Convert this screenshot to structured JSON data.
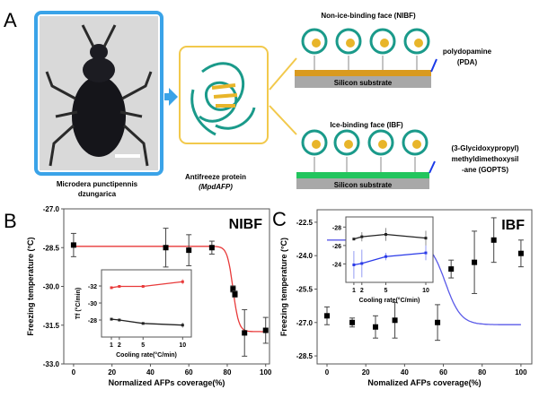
{
  "panel_a": {
    "letter": "A",
    "beetle_name_1": "Microdera punctipennis",
    "beetle_name_2": "dzungarica",
    "protein_label_1": "Antifreeze protein",
    "protein_label_2": "(MpdAFP)",
    "nibf_title": "Non-ice-binding face (NIBF)",
    "ibf_title": "Ice-binding face (IBF)",
    "substrate": "Silicon substrate",
    "pda_1": "polydopamine",
    "pda_2": "(PDA)",
    "gopts_1": "(3-Glycidoxypropyl)",
    "gopts_2": "methyldimethoxysil",
    "gopts_3": "-ane (GOPTS)",
    "colors": {
      "frame_blue": "#3aa3e8",
      "frame_yellow": "#f2c94c",
      "pda": "#d99a1f",
      "gopts": "#22c55e",
      "substrate": "#a8a8a8",
      "protein": "#1a9a8a"
    }
  },
  "chart_data": [
    {
      "id": "B",
      "letter": "B",
      "type": "scatter",
      "title": "NIBF",
      "xlabel": "Normalized AFPs coverage(%)",
      "ylabel": "Freezing temperature (°C)",
      "xlim": [
        -5.1,
        102
      ],
      "ylim": [
        -33,
        -27
      ],
      "xticks": [
        0,
        20,
        40,
        60,
        80,
        100
      ],
      "xtick_labels": [
        "0",
        "20",
        "40",
        "60",
        "80",
        "100"
      ],
      "yticks": [
        -27,
        -28.5,
        -30,
        -31.5,
        -33
      ],
      "ytick_labels": [
        "-27.0",
        "-28.5",
        "-30.0",
        "-31.5",
        "-33.0"
      ],
      "series": [
        {
          "name": "NIBF",
          "color": "#000000",
          "x": [
            0,
            48,
            60,
            72,
            83,
            84,
            89,
            100
          ],
          "y": [
            -28.4,
            -28.5,
            -28.6,
            -28.5,
            -30.1,
            -30.3,
            -31.8,
            -31.7
          ],
          "err": [
            0.45,
            0.75,
            0.6,
            0.25,
            0.12,
            0.12,
            0.9,
            0.5
          ]
        }
      ],
      "fit": {
        "color": "#e83a3a",
        "upper": -28.45,
        "lower": -31.75,
        "center": 83,
        "width": 1.5
      }
    },
    {
      "id": "B-inset",
      "type": "line",
      "xlabel": "Cooling rate(°C/min)",
      "ylabel": "Tf (°C/min)",
      "xlim": [
        -0.25,
        11.1
      ],
      "ylim": [
        -26.0,
        -33.9
      ],
      "xticks": [
        1,
        2,
        5,
        10
      ],
      "xtick_labels": [
        "1",
        "2",
        "5",
        "10"
      ],
      "yticks": [
        -32,
        -30,
        -28
      ],
      "ytick_labels": [
        "-32",
        "-30",
        "-28"
      ],
      "series": [
        {
          "name": "red",
          "color": "#e83a3a",
          "x": [
            1,
            2,
            5,
            10
          ],
          "y": [
            -31.8,
            -31.95,
            -31.95,
            -32.5
          ],
          "err": [
            0.1,
            0.1,
            0.1,
            0.3
          ]
        },
        {
          "name": "black",
          "color": "#222222",
          "x": [
            1,
            2,
            5,
            10
          ],
          "y": [
            -28.1,
            -28.0,
            -27.6,
            -27.4
          ],
          "err": [
            0.1,
            0.1,
            0.1,
            0.3
          ]
        }
      ]
    },
    {
      "id": "C",
      "letter": "C",
      "type": "scatter",
      "title": "IBF",
      "xlabel": "Nomalized AFPs coverage(%)",
      "ylabel": "Freezing temperature (°C)",
      "xlim": [
        -5.1,
        105.6
      ],
      "ylim": [
        -28.86,
        -21.94
      ],
      "xticks": [
        0,
        20,
        40,
        60,
        80,
        100
      ],
      "xtick_labels": [
        "0",
        "20",
        "40",
        "60",
        "80",
        "100"
      ],
      "yticks": [
        -22.5,
        -24,
        -25.5,
        -27,
        -28.5
      ],
      "ytick_labels": [
        "-22.5",
        "-24.0",
        "-25.5",
        "-27.0",
        "-28.5"
      ],
      "series": [
        {
          "name": "IBF",
          "color": "#000000",
          "x": [
            0,
            13,
            25,
            35,
            57,
            64,
            76,
            86,
            100
          ],
          "y": [
            -26.7,
            -27.0,
            -27.2,
            -26.9,
            -27.0,
            -24.6,
            -24.3,
            -23.3,
            -23.9
          ],
          "err": [
            0.4,
            0.2,
            0.5,
            0.8,
            0.8,
            0.4,
            1.4,
            1.0,
            0.6
          ]
        }
      ],
      "fit": {
        "color": "#5a5ae8",
        "upper": -23.3,
        "lower": -27.1,
        "center": 61,
        "width": 4
      }
    },
    {
      "id": "C-inset",
      "type": "line",
      "xlabel": "Cooling rate(°C/min)",
      "ylabel": "",
      "xlim": [
        0,
        10.9
      ],
      "ylim": [
        -22.0,
        -29.1
      ],
      "xticks": [
        1,
        2,
        5,
        10
      ],
      "xtick_labels": [
        "1",
        "2",
        "5",
        "10"
      ],
      "yticks": [
        -28,
        -26,
        -24
      ],
      "ytick_labels": [
        "-28",
        "-26",
        "-24"
      ],
      "series": [
        {
          "name": "black",
          "color": "#222222",
          "x": [
            1,
            2,
            5,
            10
          ],
          "y": [
            -26.7,
            -26.95,
            -27.2,
            -26.8
          ],
          "err": [
            0.1,
            0.5,
            0.7,
            0.8
          ]
        },
        {
          "name": "blue",
          "color": "#2a3ae8",
          "x": [
            1,
            2,
            5,
            10
          ],
          "y": [
            -23.9,
            -24.05,
            -24.8,
            -25.2
          ],
          "err": [
            1.5,
            1.5,
            0.4,
            0.8
          ]
        }
      ]
    }
  ]
}
